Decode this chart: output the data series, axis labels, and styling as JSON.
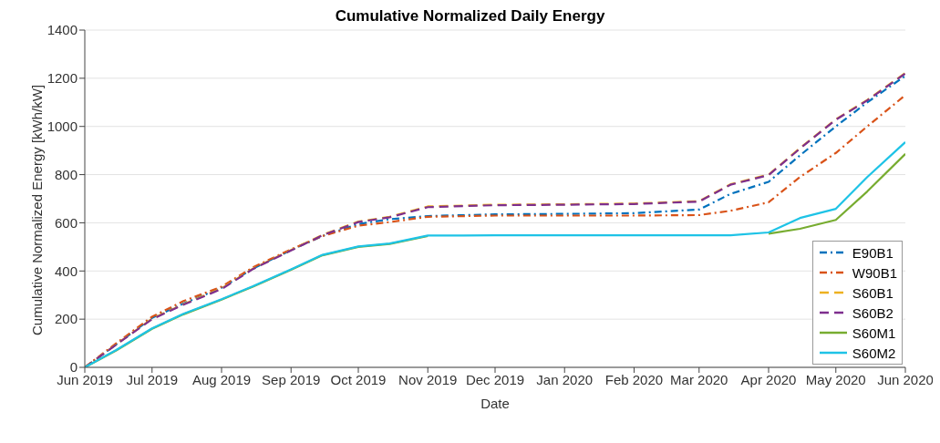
{
  "chart_data": {
    "type": "line",
    "title": "Cumulative Normalized Daily Energy",
    "xlabel": "Date",
    "ylabel": "Cumulative Normalized Energy [kWh/kW]",
    "x": [
      "2019-06-01",
      "2019-06-15",
      "2019-07-01",
      "2019-07-15",
      "2019-08-01",
      "2019-08-15",
      "2019-09-01",
      "2019-09-15",
      "2019-10-01",
      "2019-10-15",
      "2019-11-01",
      "2019-12-01",
      "2020-01-01",
      "2020-02-01",
      "2020-03-01",
      "2020-03-15",
      "2020-04-01",
      "2020-04-15",
      "2020-05-01",
      "2020-05-15",
      "2020-06-01"
    ],
    "series": [
      {
        "name": "E90B1",
        "color": "#0072bd",
        "line_style": "dashdot",
        "values": [
          0,
          95,
          205,
          265,
          330,
          410,
          487,
          545,
          595,
          615,
          628,
          635,
          637,
          640,
          655,
          720,
          770,
          880,
          1000,
          1100,
          1210
        ]
      },
      {
        "name": "W90B1",
        "color": "#d95319",
        "line_style": "dashdot",
        "values": [
          0,
          100,
          210,
          275,
          335,
          415,
          490,
          545,
          588,
          603,
          625,
          630,
          630,
          630,
          632,
          650,
          685,
          790,
          890,
          1000,
          1130
        ]
      },
      {
        "name": "S60B1",
        "color": "#edb120",
        "line_style": "dashed",
        "values": [
          0,
          95,
          202,
          262,
          328,
          410,
          487,
          550,
          605,
          625,
          668,
          675,
          677,
          680,
          690,
          760,
          800,
          910,
          1030,
          1110,
          1222
        ]
      },
      {
        "name": "S60B2",
        "color": "#7e2f8e",
        "line_style": "dashed",
        "values": [
          0,
          94,
          200,
          260,
          325,
          408,
          485,
          548,
          603,
          623,
          665,
          673,
          675,
          678,
          688,
          758,
          798,
          908,
          1028,
          1108,
          1220
        ]
      },
      {
        "name": "S60M1",
        "color": "#77ac30",
        "line_style": "solid",
        "values": [
          0,
          70,
          160,
          220,
          281,
          335,
          405,
          465,
          500,
          512,
          545,
          null,
          null,
          null,
          null,
          null,
          555,
          575,
          612,
          730,
          886
        ]
      },
      {
        "name": "S60M2",
        "color": "#1ec3e6",
        "line_style": "solid",
        "values": [
          0,
          72,
          162,
          222,
          283,
          337,
          407,
          467,
          502,
          514,
          547,
          548,
          548,
          548,
          548,
          548,
          560,
          620,
          658,
          790,
          935
        ]
      }
    ],
    "xlim": [
      "2019-06-01",
      "2020-06-01"
    ],
    "xticks": [
      {
        "value": "2019-06-01",
        "label": "Jun 2019"
      },
      {
        "value": "2019-07-01",
        "label": "Jul 2019"
      },
      {
        "value": "2019-08-01",
        "label": "Aug 2019"
      },
      {
        "value": "2019-09-01",
        "label": "Sep 2019"
      },
      {
        "value": "2019-10-01",
        "label": "Oct 2019"
      },
      {
        "value": "2019-11-01",
        "label": "Nov 2019"
      },
      {
        "value": "2019-12-01",
        "label": "Dec 2019"
      },
      {
        "value": "2020-01-01",
        "label": "Jan 2020"
      },
      {
        "value": "2020-02-01",
        "label": "Feb 2020"
      },
      {
        "value": "2020-03-01",
        "label": "Mar 2020"
      },
      {
        "value": "2020-04-01",
        "label": "Apr 2020"
      },
      {
        "value": "2020-05-01",
        "label": "May 2020"
      },
      {
        "value": "2020-06-01",
        "label": "Jun 2020"
      }
    ],
    "ylim": [
      0,
      1400
    ],
    "yticks": [
      0,
      200,
      400,
      600,
      800,
      1000,
      1200,
      1400
    ],
    "grid": "y",
    "legend": "bottom right",
    "marker": "none"
  }
}
